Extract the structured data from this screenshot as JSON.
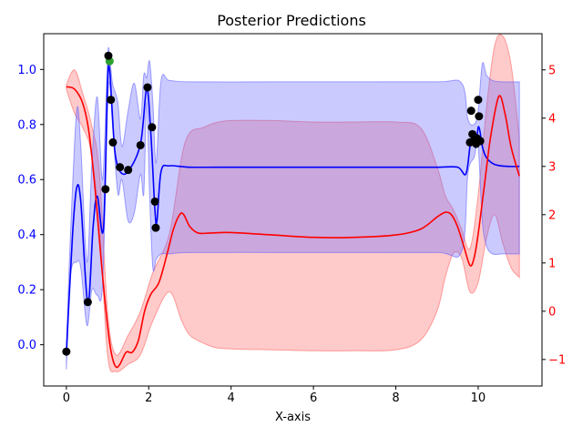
{
  "chart_data": {
    "type": "line",
    "title": "Posterior Predictions",
    "xlabel": "X-axis",
    "ylabel": "",
    "y2label": "",
    "xlim": [
      -0.55,
      11.55
    ],
    "ylim": [
      -0.15,
      1.13
    ],
    "y2lim": [
      -1.55,
      5.75
    ],
    "x_ticks": [
      0,
      2,
      4,
      6,
      8,
      10
    ],
    "y_ticks": [
      0.0,
      0.2,
      0.4,
      0.6,
      0.8,
      1.0
    ],
    "y2_ticks": [
      -1,
      0,
      1,
      2,
      3,
      4,
      5
    ],
    "grid": false,
    "colors": {
      "series1": "#0000ff",
      "series1_band": "#6666ff",
      "series2": "#ff0000",
      "series2_band": "#ff6666",
      "points": "#000000",
      "highlight_point": "#2ca02c",
      "left_ticks": "#0000ff",
      "right_ticks": "#ff0000"
    },
    "series": [
      {
        "axis": "left",
        "color": "#0000ff",
        "band_color": "#6666ff",
        "mean": {
          "x": [
            0.0,
            0.15,
            0.25,
            0.35,
            0.52,
            0.65,
            0.75,
            0.9,
            1.0,
            1.05,
            1.1,
            1.18,
            1.3,
            1.5,
            1.8,
            1.95,
            2.05,
            2.15,
            2.2,
            2.3,
            2.5,
            3.0,
            4.0,
            5.0,
            6.0,
            7.0,
            8.0,
            9.0,
            9.5,
            9.7,
            9.8,
            9.85,
            9.9,
            9.95,
            10.0,
            10.05,
            10.1,
            10.2,
            10.4,
            10.7,
            11.0
          ],
          "y": [
            -0.03,
            0.4,
            0.57,
            0.52,
            0.15,
            0.43,
            0.54,
            0.42,
            0.95,
            1.0,
            0.88,
            0.7,
            0.63,
            0.63,
            0.73,
            0.93,
            0.77,
            0.49,
            0.45,
            0.63,
            0.65,
            0.645,
            0.645,
            0.645,
            0.645,
            0.645,
            0.645,
            0.645,
            0.645,
            0.62,
            0.72,
            0.76,
            0.73,
            0.72,
            0.79,
            0.77,
            0.72,
            0.68,
            0.655,
            0.648,
            0.648
          ]
        },
        "band_upper": {
          "x": [
            0.0,
            0.1,
            0.25,
            0.35,
            0.5,
            0.62,
            0.75,
            0.88,
            1.0,
            1.05,
            1.12,
            1.25,
            1.35,
            1.5,
            1.65,
            1.8,
            1.88,
            1.95,
            2.02,
            2.1,
            2.18,
            2.3,
            2.5,
            3.0,
            5.0,
            7.0,
            9.0,
            9.6,
            9.75,
            9.9,
            10.0,
            10.1,
            10.2,
            10.35,
            10.6,
            11.0
          ],
          "y": [
            0.0,
            0.4,
            0.85,
            0.72,
            0.3,
            0.66,
            0.9,
            0.6,
            1.04,
            1.05,
            0.95,
            0.88,
            0.72,
            0.85,
            0.95,
            0.82,
            0.98,
            0.97,
            1.03,
            0.88,
            0.66,
            0.96,
            0.96,
            0.955,
            0.955,
            0.955,
            0.955,
            0.95,
            0.82,
            0.8,
            0.85,
            1.02,
            0.98,
            0.96,
            0.955,
            0.955
          ]
        },
        "band_lower": {
          "x": [
            0.0,
            0.1,
            0.25,
            0.35,
            0.5,
            0.62,
            0.75,
            0.88,
            1.0,
            1.05,
            1.12,
            1.25,
            1.35,
            1.5,
            1.65,
            1.8,
            1.88,
            1.95,
            2.02,
            2.1,
            2.18,
            2.3,
            2.5,
            3.0,
            5.0,
            7.0,
            9.0,
            9.6,
            9.75,
            9.9,
            10.0,
            10.1,
            10.2,
            10.35,
            10.6,
            11.0
          ],
          "y": [
            -0.09,
            0.25,
            0.3,
            0.28,
            0.07,
            0.2,
            0.18,
            0.22,
            0.85,
            0.95,
            0.8,
            0.55,
            0.6,
            0.45,
            0.48,
            0.62,
            0.55,
            0.88,
            0.55,
            0.28,
            0.31,
            0.33,
            0.33,
            0.335,
            0.335,
            0.335,
            0.335,
            0.34,
            0.62,
            0.68,
            0.72,
            0.45,
            0.36,
            0.33,
            0.33,
            0.33
          ]
        }
      },
      {
        "axis": "right",
        "color": "#ff0000",
        "band_color": "#ff6666",
        "mean": {
          "x": [
            0.0,
            0.2,
            0.4,
            0.55,
            0.7,
            0.85,
            1.0,
            1.1,
            1.2,
            1.3,
            1.45,
            1.6,
            1.75,
            1.9,
            2.05,
            2.25,
            2.45,
            2.6,
            2.75,
            2.85,
            3.0,
            3.2,
            3.5,
            4.0,
            5.0,
            6.0,
            7.0,
            8.0,
            8.6,
            9.0,
            9.2,
            9.35,
            9.5,
            9.65,
            9.8,
            9.9,
            10.0,
            10.15,
            10.3,
            10.5,
            10.65,
            10.8,
            11.0
          ],
          "y": [
            4.65,
            4.6,
            4.3,
            3.7,
            2.5,
            1.0,
            -0.3,
            -0.9,
            -1.15,
            -1.1,
            -0.85,
            -0.85,
            -0.6,
            0.0,
            0.35,
            0.6,
            1.2,
            1.7,
            2.0,
            2.0,
            1.75,
            1.62,
            1.62,
            1.63,
            1.58,
            1.53,
            1.53,
            1.58,
            1.7,
            1.95,
            2.05,
            2.0,
            1.75,
            1.35,
            0.95,
            1.1,
            1.6,
            2.6,
            3.6,
            4.45,
            4.1,
            3.4,
            2.8
          ]
        },
        "band_upper": {
          "x": [
            0.0,
            0.2,
            0.4,
            0.6,
            0.8,
            1.0,
            1.2,
            1.5,
            1.8,
            2.1,
            2.5,
            2.8,
            3.0,
            3.3,
            3.6,
            4.0,
            5.0,
            6.0,
            7.0,
            8.0,
            8.6,
            9.0,
            9.2,
            9.4,
            9.6,
            9.8,
            10.0,
            10.2,
            10.4,
            10.6,
            10.8,
            11.0
          ],
          "y": [
            4.7,
            5.0,
            4.5,
            3.9,
            2.9,
            0.0,
            -0.9,
            -0.5,
            0.0,
            0.8,
            1.6,
            3.2,
            3.7,
            3.8,
            3.9,
            3.95,
            3.95,
            3.92,
            3.92,
            3.92,
            3.8,
            3.0,
            2.4,
            2.1,
            1.7,
            1.3,
            2.4,
            4.2,
            5.5,
            5.7,
            5.1,
            3.6
          ]
        },
        "band_lower": {
          "x": [
            0.0,
            0.2,
            0.4,
            0.6,
            0.8,
            1.0,
            1.2,
            1.5,
            1.8,
            2.1,
            2.5,
            2.8,
            3.0,
            3.3,
            3.6,
            4.0,
            5.0,
            6.0,
            7.0,
            8.0,
            8.6,
            9.0,
            9.2,
            9.4,
            9.6,
            9.8,
            10.0,
            10.2,
            10.4,
            10.6,
            10.8,
            11.0
          ],
          "y": [
            4.6,
            4.1,
            3.8,
            3.3,
            1.8,
            -0.9,
            -1.25,
            -1.1,
            -0.9,
            -0.2,
            0.4,
            -0.2,
            -0.5,
            -0.65,
            -0.75,
            -0.78,
            -0.8,
            -0.82,
            -0.82,
            -0.8,
            -0.6,
            0.0,
            0.7,
            1.2,
            1.1,
            0.4,
            0.6,
            1.5,
            2.0,
            1.4,
            0.9,
            0.7
          ]
        }
      }
    ],
    "points": {
      "axis": "left",
      "x": [
        0.0,
        0.52,
        0.95,
        1.02,
        1.08,
        1.13,
        1.3,
        1.5,
        1.8,
        1.97,
        2.08,
        2.15,
        2.17,
        9.8,
        9.83,
        9.86,
        9.9,
        9.95,
        9.97,
        10.0,
        10.02,
        10.05
      ],
      "y": [
        -0.025,
        0.155,
        0.565,
        1.05,
        0.89,
        0.735,
        0.645,
        0.635,
        0.725,
        0.935,
        0.79,
        0.52,
        0.425,
        0.735,
        0.85,
        0.765,
        0.74,
        0.73,
        0.75,
        0.89,
        0.83,
        0.74
      ],
      "highlight": {
        "x": 1.05,
        "y": 1.03
      }
    }
  }
}
